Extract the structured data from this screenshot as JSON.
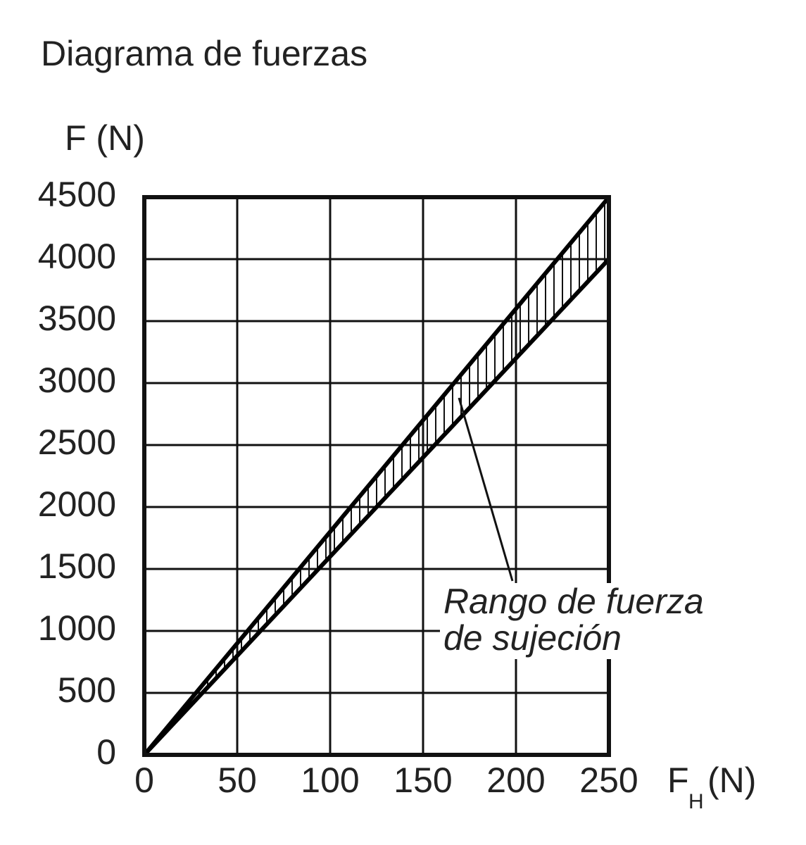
{
  "chart_data": {
    "type": "line",
    "title": "Diagrama de fuerzas",
    "ylabel": "F (N)",
    "xlabel": {
      "symbol": "F",
      "subscript": "H",
      "unit": "(N)"
    },
    "x": [
      0,
      250
    ],
    "series": [
      {
        "color": "#000000",
        "values": [
          0,
          4500
        ]
      },
      {
        "color": "#000000",
        "values": [
          0,
          4000
        ]
      }
    ],
    "xlim": [
      0,
      250
    ],
    "xticks": [
      0,
      50,
      100,
      150,
      200,
      250
    ],
    "ylim": [
      0,
      4500
    ],
    "yticks": [
      0,
      500,
      1000,
      1500,
      2000,
      2500,
      3000,
      3500,
      4000,
      4500
    ],
    "grid": true,
    "hatched_band": true,
    "annotation": [
      "Rango de fuerza",
      "de sujeción"
    ]
  }
}
